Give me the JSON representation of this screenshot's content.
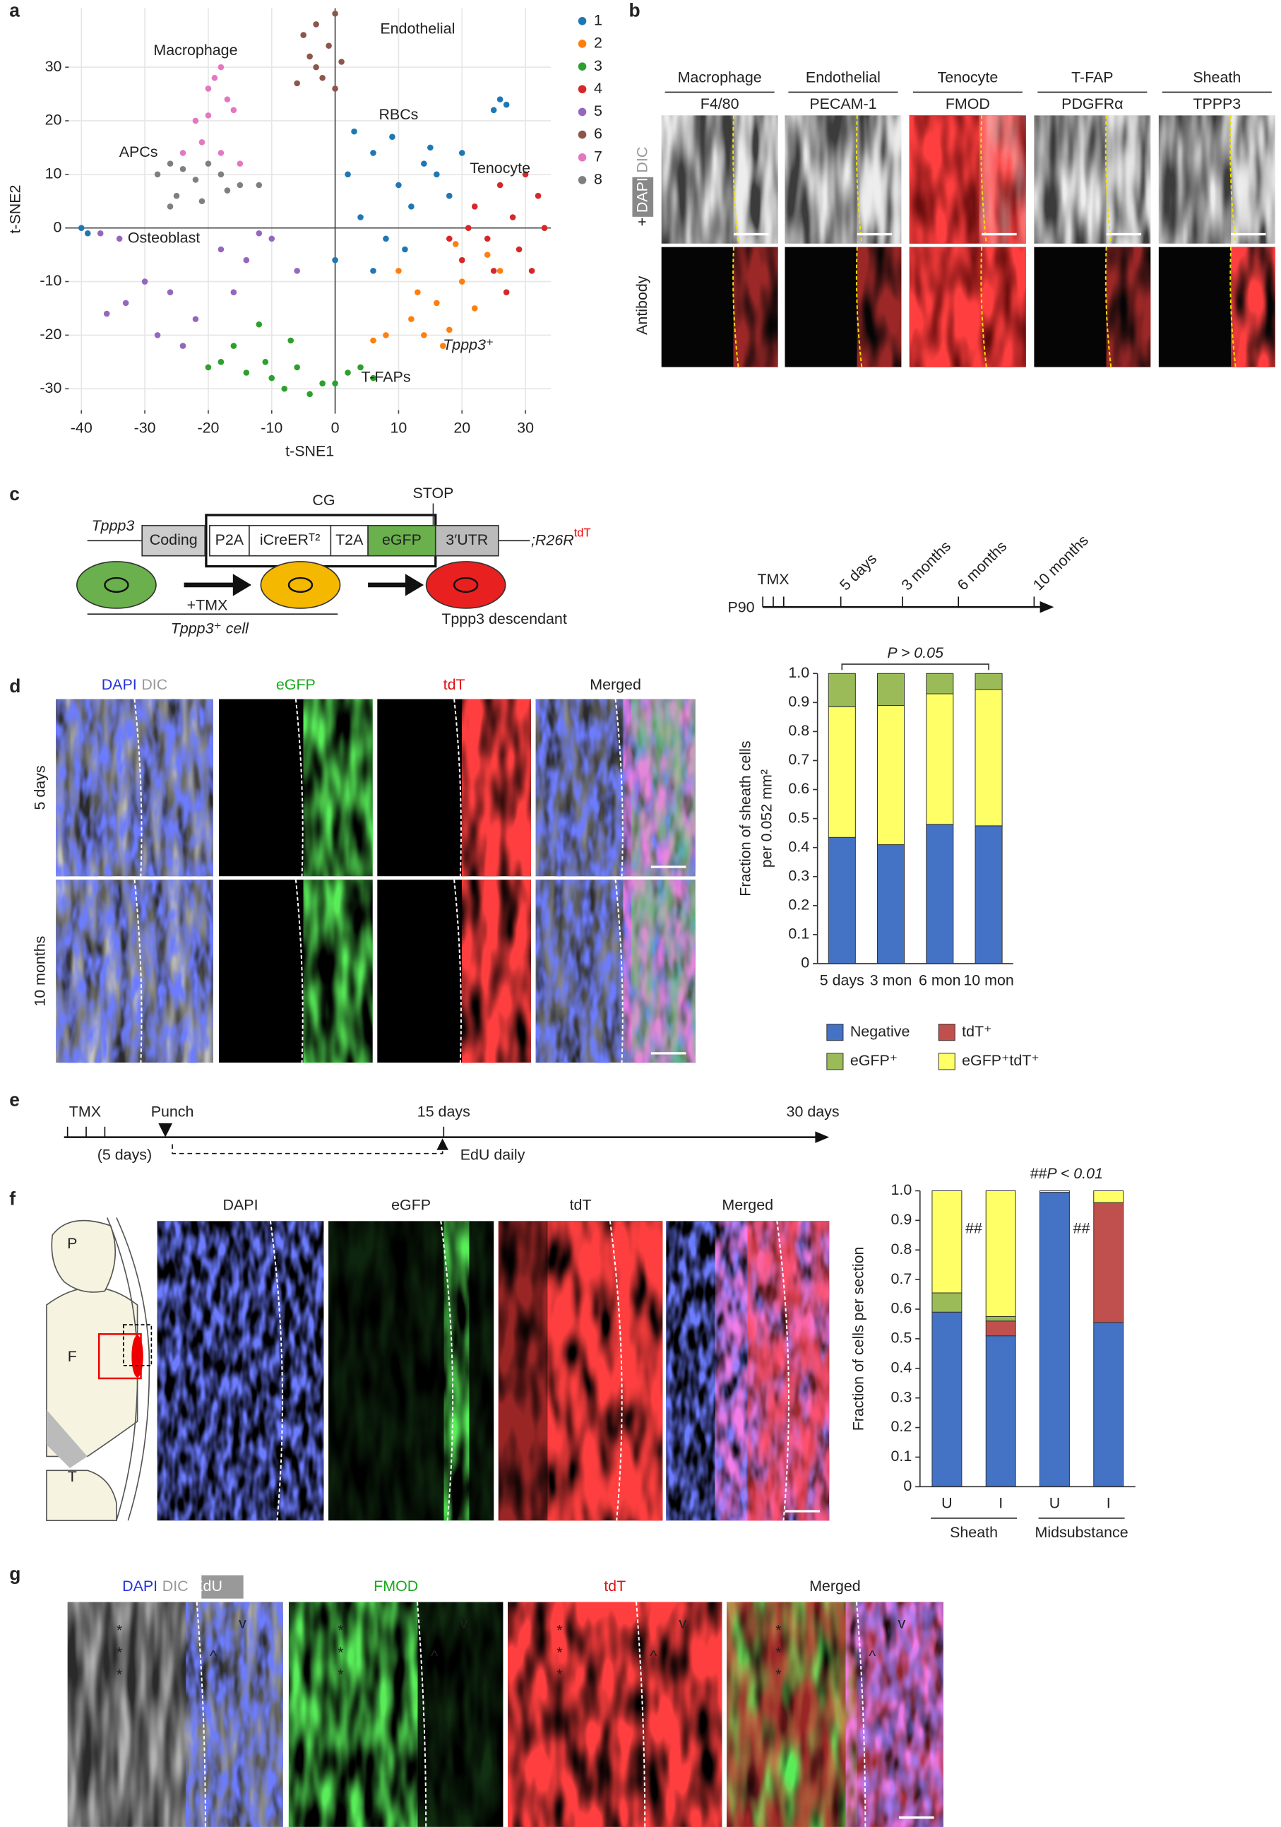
{
  "panel_labels": [
    "a",
    "b",
    "c",
    "d",
    "e",
    "f",
    "g"
  ],
  "chart_data": [
    {
      "type": "scatter",
      "xlabel": "t-SNE1",
      "ylabel": "t-SNE2",
      "xlim": [
        -42,
        34
      ],
      "ylim": [
        -34,
        41
      ],
      "xticks": [
        -40,
        -30,
        -20,
        -10,
        0,
        10,
        20,
        30
      ],
      "yticks": [
        -30,
        -20,
        -10,
        0,
        10,
        20,
        30
      ],
      "grid": true,
      "legend": "right",
      "series": [
        {
          "name": "1",
          "color": "#1f77b4",
          "x": [
            2,
            6,
            10,
            14,
            18,
            4,
            8,
            12,
            16,
            0,
            3,
            9,
            15,
            20,
            25,
            26,
            27,
            -40,
            -39,
            6,
            11
          ],
          "values": [
            10,
            14,
            8,
            12,
            6,
            2,
            -2,
            4,
            10,
            -6,
            18,
            17,
            15,
            14,
            22,
            24,
            23,
            0,
            -1,
            -8,
            -4
          ]
        },
        {
          "name": "2",
          "color": "#ff7f0e",
          "x": [
            8,
            12,
            16,
            20,
            24,
            14,
            18,
            22,
            10,
            6,
            19,
            26,
            13,
            17
          ],
          "values": [
            -20,
            -17,
            -14,
            -10,
            -5,
            -20,
            -19,
            -15,
            -8,
            -21,
            -3,
            -8,
            -12,
            -22
          ]
        },
        {
          "name": "3",
          "color": "#2ca02c",
          "x": [
            -18,
            -14,
            -10,
            -6,
            -2,
            2,
            6,
            -16,
            -12,
            -8,
            -4,
            0,
            4,
            -20,
            -7,
            -11
          ],
          "values": [
            -25,
            -27,
            -28,
            -26,
            -29,
            -27,
            -28,
            -22,
            -18,
            -30,
            -31,
            -29,
            -26,
            -26,
            -21,
            -25
          ]
        },
        {
          "name": "4",
          "color": "#d62728",
          "x": [
            20,
            24,
            28,
            32,
            22,
            26,
            30,
            18,
            25,
            29,
            33,
            21,
            27,
            31
          ],
          "values": [
            -6,
            -2,
            2,
            6,
            4,
            8,
            10,
            -2,
            -8,
            -4,
            0,
            0,
            -12,
            -8
          ]
        },
        {
          "name": "5",
          "color": "#9467bd",
          "x": [
            -37,
            -34,
            -30,
            -26,
            -22,
            -18,
            -14,
            -10,
            -6,
            -28,
            -24,
            -16,
            -12,
            -33,
            -36
          ],
          "values": [
            -1,
            -2,
            -10,
            -12,
            -17,
            -4,
            -6,
            -2,
            -8,
            -20,
            -22,
            -12,
            -1,
            -14,
            -16
          ]
        },
        {
          "name": "6",
          "color": "#8c564b",
          "x": [
            -5,
            -4,
            -3,
            -2,
            -1,
            0,
            -6,
            -3,
            0,
            1
          ],
          "values": [
            36,
            32,
            30,
            28,
            34,
            26,
            27,
            38,
            40,
            31
          ]
        },
        {
          "name": "7",
          "color": "#e377c2",
          "x": [
            -20,
            -19,
            -18,
            -17,
            -16,
            -22,
            -21,
            -18,
            -15,
            -24,
            -20
          ],
          "values": [
            26,
            28,
            30,
            24,
            22,
            20,
            16,
            14,
            12,
            14,
            21
          ]
        },
        {
          "name": "8",
          "color": "#7f7f7f",
          "x": [
            -28,
            -26,
            -24,
            -22,
            -20,
            -18,
            -15,
            -12,
            -25,
            -21,
            -17,
            -26
          ],
          "values": [
            10,
            12,
            11,
            9,
            12,
            10,
            8,
            8,
            6,
            5,
            7,
            4
          ]
        }
      ],
      "annotations": [
        {
          "text": "Macrophage",
          "x": -22,
          "y": 33,
          "color": "#e377c2"
        },
        {
          "text": "Endothelial",
          "x": 13,
          "y": 37,
          "color": "#8c564b"
        },
        {
          "text": "RBCs",
          "x": 10,
          "y": 21,
          "color": "#1f77b4"
        },
        {
          "text": "Tenocyte",
          "x": 26,
          "y": 11,
          "color": "#d62728"
        },
        {
          "text": "APCs",
          "x": -31,
          "y": 14,
          "color": "#7f7f7f"
        },
        {
          "text": "Osteoblast",
          "x": -27,
          "y": -2,
          "color": "#9467bd"
        },
        {
          "text": "Tppp3⁺",
          "x": 21,
          "y": -22,
          "color": "#ff7f0e",
          "italic": true
        },
        {
          "text": "T-FAPs",
          "x": 8,
          "y": -28,
          "color": "#2ca02c"
        }
      ]
    },
    {
      "type": "stacked_bar",
      "ylabel": [
        "Fraction of sheath cells",
        "per 0.052 mm²"
      ],
      "categories": [
        "5 days",
        "3 mon",
        "6 mon",
        "10 mon"
      ],
      "ylim": [
        0,
        1
      ],
      "yticks": [
        0,
        0.1,
        0.2,
        0.3,
        0.4,
        0.5,
        0.6,
        0.7,
        0.8,
        0.9,
        {
          "value": 1,
          "label": "1.0"
        }
      ],
      "series": [
        {
          "name": "Negative",
          "color": "#4472c4",
          "values": [
            0.435,
            0.41,
            0.48,
            0.475
          ]
        },
        {
          "name": "tdT⁺",
          "color": "#c0504d",
          "values": [
            0,
            0,
            0,
            0
          ]
        },
        {
          "name": "eGFP⁺tdT⁺",
          "color": "#ffff66",
          "values": [
            0.45,
            0.48,
            0.45,
            0.47
          ]
        },
        {
          "name": "eGFP⁺",
          "color": "#9bbb59",
          "values": [
            0.115,
            0.11,
            0.07,
            0.055
          ]
        }
      ],
      "bracket": "P > 0.05",
      "legend": "bottom"
    },
    {
      "type": "stacked_bar",
      "ylabel": [
        "Fraction of cells per section"
      ],
      "categories": [
        "U",
        "I",
        "U",
        "I"
      ],
      "groups": [
        "Sheath",
        "Midsubstance"
      ],
      "ylim": [
        0,
        1
      ],
      "yticks": [
        0,
        0.1,
        0.2,
        0.3,
        0.4,
        0.5,
        0.6,
        0.7,
        0.8,
        0.9,
        {
          "value": 1,
          "label": "1.0"
        }
      ],
      "series": [
        {
          "name": "Negative",
          "color": "#4472c4",
          "values": [
            0.59,
            0.51,
            0.995,
            0.555
          ]
        },
        {
          "name": "tdT⁺",
          "color": "#c0504d",
          "values": [
            0,
            0.05,
            0,
            0.405
          ]
        },
        {
          "name": "eGFP⁺",
          "color": "#9bbb59",
          "values": [
            0.065,
            0.015,
            0,
            0
          ]
        },
        {
          "name": "eGFP⁺tdT⁺",
          "color": "#ffff66",
          "values": [
            0.345,
            0.425,
            0.005,
            0.04
          ]
        }
      ],
      "annotations": [
        "##",
        "##"
      ],
      "significance": "##P < 0.01"
    }
  ],
  "panel_b": {
    "cell_types": [
      {
        "name": "Macrophage",
        "color": "#e377c2",
        "marker": "F4/80"
      },
      {
        "name": "Endothelial",
        "color": "#8c564b",
        "marker": "PECAM-1"
      },
      {
        "name": "Tenocyte",
        "color": "#d62728",
        "marker": "FMOD"
      },
      {
        "name": "T-FAP",
        "color": "#2ca02c",
        "marker": "PDGFRα"
      },
      {
        "name": "Sheath",
        "color": "#ff7f0e",
        "marker": "TPPP3"
      }
    ],
    "row_top": [
      "+",
      "DAPI",
      "DIC"
    ],
    "row_bottom": "Antibody"
  },
  "panel_c": {
    "gene": "Tppp3",
    "segments": [
      "Coding",
      "P2A",
      "iCreERᵀ²",
      "T2A",
      "eGFP",
      "3′UTR"
    ],
    "cg": "CG",
    "stop": "STOP",
    "reporter": [
      ";R26R",
      "tdT"
    ],
    "tmx": "+TMX",
    "cell": "Tppp3⁺ cell",
    "descendant": "Tppp3 descendant",
    "timeline": {
      "start": "P90",
      "tmx": "TMX",
      "points": [
        "5 days",
        "3 months",
        "6 months",
        "10 months"
      ]
    }
  },
  "panel_d": {
    "channels": [
      [
        "DAPI",
        "DIC"
      ],
      [
        "eGFP"
      ],
      [
        "tdT"
      ],
      [
        "Merged"
      ]
    ],
    "rows": [
      "5 days",
      "10 months"
    ]
  },
  "panel_e": {
    "tmx": "TMX",
    "tmx_note": "(5 days)",
    "punch": "Punch",
    "mid": "15 days",
    "end": "30 days",
    "edu": "EdU daily"
  },
  "panel_f": {
    "knee": [
      "P",
      "F",
      "T"
    ],
    "channels": [
      "DAPI",
      "eGFP",
      "tdT",
      "Merged"
    ]
  },
  "panel_g": {
    "channels": [
      [
        "DAPI",
        "DIC",
        "EdU"
      ],
      [
        "FMOD"
      ],
      [
        "tdT"
      ],
      [
        "Merged"
      ]
    ],
    "markers": {
      "asterisk": "*",
      "up": "^",
      "down": "v"
    }
  }
}
